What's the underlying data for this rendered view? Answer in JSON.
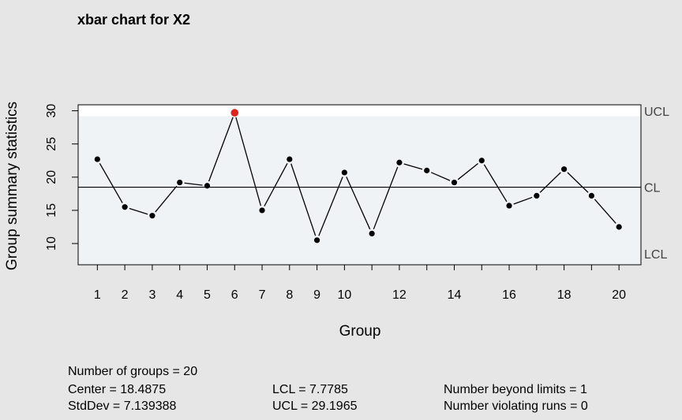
{
  "chart_data": {
    "type": "line",
    "title": "xbar chart for X2",
    "xlabel": "Group",
    "ylabel": "Group summary statistics",
    "x": [
      1,
      2,
      3,
      4,
      5,
      6,
      7,
      8,
      9,
      10,
      11,
      12,
      13,
      14,
      15,
      16,
      17,
      18,
      19,
      20
    ],
    "x_tick_labels": [
      "1",
      "2",
      "3",
      "4",
      "5",
      "6",
      "7",
      "8",
      "9",
      "10",
      "12",
      "14",
      "16",
      "18",
      "20"
    ],
    "x_tick_positions": [
      1,
      2,
      3,
      4,
      5,
      6,
      7,
      8,
      9,
      10,
      12,
      14,
      16,
      18,
      20
    ],
    "y_ticks": [
      10,
      15,
      20,
      25,
      30
    ],
    "xlim": [
      0.3,
      20.8
    ],
    "ylim": [
      6.8,
      30.9
    ],
    "series": [
      {
        "values": [
          22.7,
          15.5,
          14.2,
          19.2,
          18.7,
          29.7,
          15.0,
          22.7,
          10.5,
          20.7,
          11.5,
          22.2,
          21.0,
          19.2,
          22.5,
          15.7,
          17.2,
          21.2,
          17.2,
          12.5
        ],
        "color": "#000000",
        "out_of_control_index": [
          6
        ],
        "out_of_control_color": "#e0221b"
      }
    ],
    "limits": {
      "ucl": 29.1965,
      "cl": 18.4875,
      "lcl": 7.7785,
      "ucl_label": "UCL",
      "cl_label": "CL",
      "lcl_label": "LCL"
    },
    "colors": {
      "background": "#e6e6e6",
      "plot_background": "#f0f3f6",
      "above_ucl_band": "#ffffff"
    },
    "grid": false
  },
  "stats": {
    "groups": "Number of groups = 20",
    "center": "Center = 18.4875",
    "stddev": "StdDev = 7.139388",
    "lcl": "LCL = 7.7785",
    "ucl": "UCL = 29.1965",
    "beyond": "Number beyond limits = 1",
    "violating": "Number violating runs = 0"
  }
}
